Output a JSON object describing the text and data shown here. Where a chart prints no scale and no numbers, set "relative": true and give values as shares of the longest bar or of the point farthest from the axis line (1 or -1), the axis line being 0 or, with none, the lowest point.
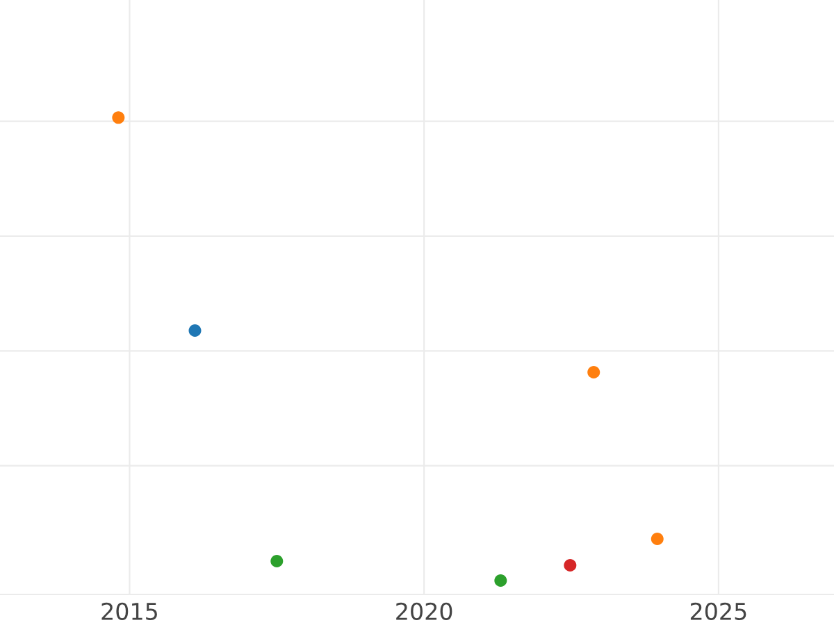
{
  "chart_data": {
    "type": "scatter",
    "relative": true,
    "x": [
      2014.81,
      2016.11,
      2017.5,
      2021.3,
      2022.48,
      2022.88,
      2023.96
    ],
    "values": [
      1,
      0.54,
      0.042,
      0,
      0.033,
      0.45,
      0.09
    ],
    "colors": [
      "#ff7f0e",
      "#1f77b4",
      "#2ca02c",
      "#2ca02c",
      "#d62728",
      "#ff7f0e",
      "#ff7f0e"
    ],
    "xlim": [
      2012.8,
      2026.96
    ],
    "xticks": [
      2015,
      2020,
      2025
    ],
    "grid": true
  }
}
